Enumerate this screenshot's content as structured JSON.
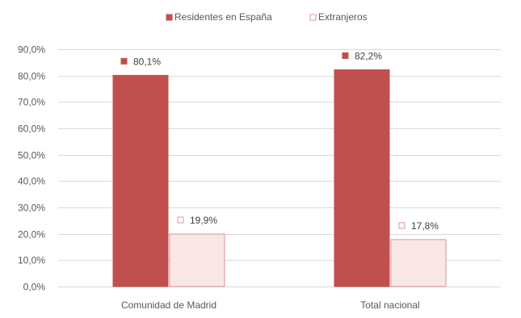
{
  "chart_data": {
    "type": "bar",
    "categories": [
      "Comunidad de Madrid",
      "Total nacional"
    ],
    "series": [
      {
        "name": "Residentes en España",
        "values": [
          80.1,
          82.2
        ],
        "labels": [
          "80,1%",
          "82,2%"
        ],
        "color": "#c0504d",
        "border": "#c0504d"
      },
      {
        "name": "Extranjeros",
        "values": [
          19.9,
          17.8
        ],
        "labels": [
          "19,9%",
          "17,8%"
        ],
        "color": "#f9e6e6",
        "border": "#d99594"
      }
    ],
    "y_ticks": [
      0,
      10,
      20,
      30,
      40,
      50,
      60,
      70,
      80,
      90
    ],
    "y_tick_labels": [
      "0,0%",
      "10,0%",
      "20,0%",
      "30,0%",
      "40,0%",
      "50,0%",
      "60,0%",
      "70,0%",
      "80,0%",
      "90,0%"
    ],
    "ylim": [
      0,
      90
    ],
    "grid": true,
    "legend_position": "top-center"
  }
}
